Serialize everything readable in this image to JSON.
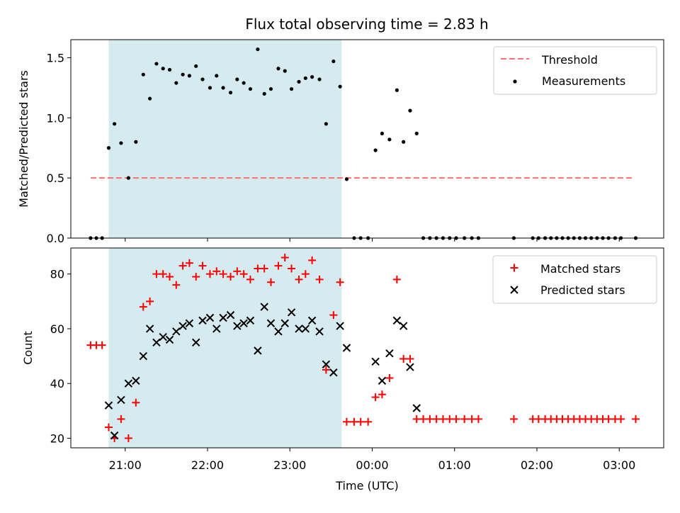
{
  "chart_data": {
    "type": "scatter",
    "title": "Flux total observing time = 2.83 h",
    "xlabel": "Time (UTC)",
    "x_ticks": [
      "21:00",
      "22:00",
      "23:00",
      "00:00",
      "01:00",
      "02:00",
      "03:00"
    ],
    "x_tick_hours": [
      21,
      22,
      23,
      24,
      25,
      26,
      27
    ],
    "xlim": [
      20.34,
      27.54
    ],
    "highlight_span": {
      "x_start": 20.8,
      "x_end": 23.63,
      "color": "#d5ebf0"
    },
    "panels": [
      {
        "ylabel": "Matched/Predicted stars",
        "ylim": [
          0,
          1.65
        ],
        "y_ticks": [
          0.0,
          0.5,
          1.0,
          1.5
        ],
        "y_tick_labels": [
          "0.0",
          "0.5",
          "1.0",
          "1.5"
        ],
        "legend_position": "top-right",
        "series": [
          {
            "name": "Threshold",
            "kind": "dashed-line",
            "color": "#ff7070",
            "y": 0.5,
            "x_range": [
              20.58,
              27.17
            ]
          },
          {
            "name": "Measurements",
            "kind": "dot",
            "color": "#000000",
            "points": [
              [
                20.58,
                0
              ],
              [
                20.65,
                0
              ],
              [
                20.72,
                0
              ],
              [
                20.8,
                0.75
              ],
              [
                20.87,
                0.95
              ],
              [
                20.95,
                0.79
              ],
              [
                21.04,
                0.5
              ],
              [
                21.13,
                0.8
              ],
              [
                21.22,
                1.36
              ],
              [
                21.3,
                1.16
              ],
              [
                21.38,
                1.45
              ],
              [
                21.46,
                1.41
              ],
              [
                21.54,
                1.4
              ],
              [
                21.62,
                1.29
              ],
              [
                21.7,
                1.36
              ],
              [
                21.78,
                1.35
              ],
              [
                21.86,
                1.43
              ],
              [
                21.94,
                1.32
              ],
              [
                22.03,
                1.25
              ],
              [
                22.11,
                1.35
              ],
              [
                22.19,
                1.25
              ],
              [
                22.28,
                1.21
              ],
              [
                22.36,
                1.32
              ],
              [
                22.44,
                1.29
              ],
              [
                22.52,
                1.24
              ],
              [
                22.61,
                1.57
              ],
              [
                22.69,
                1.2
              ],
              [
                22.77,
                1.24
              ],
              [
                22.86,
                1.41
              ],
              [
                22.94,
                1.39
              ],
              [
                23.02,
                1.24
              ],
              [
                23.11,
                1.3
              ],
              [
                23.19,
                1.33
              ],
              [
                23.27,
                1.34
              ],
              [
                23.36,
                1.32
              ],
              [
                23.44,
                0.95
              ],
              [
                23.53,
                1.47
              ],
              [
                23.61,
                1.26
              ],
              [
                23.69,
                0.49
              ],
              [
                23.78,
                0
              ],
              [
                23.86,
                0
              ],
              [
                23.95,
                0
              ],
              [
                24.04,
                0.73
              ],
              [
                24.12,
                0.87
              ],
              [
                24.21,
                0.82
              ],
              [
                24.3,
                1.23
              ],
              [
                24.38,
                0.8
              ],
              [
                24.46,
                1.06
              ],
              [
                24.54,
                0.87
              ],
              [
                24.62,
                0
              ],
              [
                24.7,
                0
              ],
              [
                24.78,
                0
              ],
              [
                24.86,
                0
              ],
              [
                24.94,
                0
              ],
              [
                25.02,
                0
              ],
              [
                25.12,
                0
              ],
              [
                25.21,
                0
              ],
              [
                25.29,
                0
              ],
              [
                25.72,
                0
              ],
              [
                25.95,
                0
              ],
              [
                26.02,
                0
              ],
              [
                26.1,
                0
              ],
              [
                26.17,
                0
              ],
              [
                26.24,
                0
              ],
              [
                26.31,
                0
              ],
              [
                26.38,
                0
              ],
              [
                26.45,
                0
              ],
              [
                26.52,
                0
              ],
              [
                26.59,
                0
              ],
              [
                26.66,
                0
              ],
              [
                26.73,
                0
              ],
              [
                26.8,
                0
              ],
              [
                26.87,
                0
              ],
              [
                26.95,
                0
              ],
              [
                27.02,
                0
              ],
              [
                27.2,
                0
              ]
            ]
          }
        ]
      },
      {
        "ylabel": "Count",
        "ylim": [
          16.5,
          89.5
        ],
        "y_ticks": [
          20,
          40,
          60,
          80
        ],
        "y_tick_labels": [
          "20",
          "40",
          "60",
          "80"
        ],
        "legend_position": "top-right",
        "series": [
          {
            "name": "Matched stars",
            "kind": "plus",
            "color": "#ff0000",
            "points": [
              [
                20.58,
                54
              ],
              [
                20.65,
                54
              ],
              [
                20.72,
                54
              ],
              [
                20.8,
                24
              ],
              [
                20.87,
                20
              ],
              [
                20.95,
                27
              ],
              [
                21.04,
                20
              ],
              [
                21.13,
                33
              ],
              [
                21.22,
                68
              ],
              [
                21.3,
                70
              ],
              [
                21.38,
                80
              ],
              [
                21.46,
                80
              ],
              [
                21.54,
                79
              ],
              [
                21.62,
                76
              ],
              [
                21.7,
                83
              ],
              [
                21.78,
                84
              ],
              [
                21.86,
                79
              ],
              [
                21.94,
                83
              ],
              [
                22.03,
                80
              ],
              [
                22.11,
                81
              ],
              [
                22.19,
                80
              ],
              [
                22.28,
                79
              ],
              [
                22.36,
                81
              ],
              [
                22.44,
                80
              ],
              [
                22.52,
                78
              ],
              [
                22.61,
                82
              ],
              [
                22.69,
                82
              ],
              [
                22.77,
                77
              ],
              [
                22.86,
                83
              ],
              [
                22.94,
                86
              ],
              [
                23.02,
                82
              ],
              [
                23.11,
                78
              ],
              [
                23.19,
                80
              ],
              [
                23.27,
                85
              ],
              [
                23.36,
                78
              ],
              [
                23.44,
                45
              ],
              [
                23.53,
                65
              ],
              [
                23.61,
                77
              ],
              [
                23.69,
                26
              ],
              [
                23.78,
                26
              ],
              [
                23.86,
                26
              ],
              [
                23.95,
                26
              ],
              [
                24.04,
                35
              ],
              [
                24.12,
                36
              ],
              [
                24.21,
                42
              ],
              [
                24.3,
                78
              ],
              [
                24.38,
                49
              ],
              [
                24.46,
                49
              ],
              [
                24.54,
                27
              ],
              [
                24.62,
                27
              ],
              [
                24.7,
                27
              ],
              [
                24.78,
                27
              ],
              [
                24.86,
                27
              ],
              [
                24.94,
                27
              ],
              [
                25.02,
                27
              ],
              [
                25.12,
                27
              ],
              [
                25.21,
                27
              ],
              [
                25.29,
                27
              ],
              [
                25.72,
                27
              ],
              [
                25.95,
                27
              ],
              [
                26.02,
                27
              ],
              [
                26.1,
                27
              ],
              [
                26.17,
                27
              ],
              [
                26.24,
                27
              ],
              [
                26.31,
                27
              ],
              [
                26.38,
                27
              ],
              [
                26.45,
                27
              ],
              [
                26.52,
                27
              ],
              [
                26.59,
                27
              ],
              [
                26.66,
                27
              ],
              [
                26.73,
                27
              ],
              [
                26.8,
                27
              ],
              [
                26.87,
                27
              ],
              [
                26.95,
                27
              ],
              [
                27.02,
                27
              ],
              [
                27.2,
                27
              ]
            ]
          },
          {
            "name": "Predicted stars",
            "kind": "x",
            "color": "#000000",
            "points": [
              [
                20.8,
                32
              ],
              [
                20.87,
                21
              ],
              [
                20.95,
                34
              ],
              [
                21.04,
                40
              ],
              [
                21.13,
                41
              ],
              [
                21.22,
                50
              ],
              [
                21.3,
                60
              ],
              [
                21.38,
                55
              ],
              [
                21.46,
                57
              ],
              [
                21.54,
                56
              ],
              [
                21.62,
                59
              ],
              [
                21.7,
                61
              ],
              [
                21.78,
                62
              ],
              [
                21.86,
                55
              ],
              [
                21.94,
                63
              ],
              [
                22.03,
                64
              ],
              [
                22.11,
                60
              ],
              [
                22.19,
                64
              ],
              [
                22.28,
                65
              ],
              [
                22.36,
                61
              ],
              [
                22.44,
                62
              ],
              [
                22.52,
                63
              ],
              [
                22.61,
                52
              ],
              [
                22.69,
                68
              ],
              [
                22.77,
                62
              ],
              [
                22.86,
                59
              ],
              [
                22.94,
                62
              ],
              [
                23.02,
                66
              ],
              [
                23.11,
                60
              ],
              [
                23.19,
                60
              ],
              [
                23.27,
                63
              ],
              [
                23.36,
                59
              ],
              [
                23.44,
                47
              ],
              [
                23.53,
                44
              ],
              [
                23.61,
                61
              ],
              [
                23.69,
                53
              ],
              [
                24.04,
                48
              ],
              [
                24.12,
                41
              ],
              [
                24.21,
                51
              ],
              [
                24.3,
                63
              ],
              [
                24.38,
                61
              ],
              [
                24.46,
                46
              ],
              [
                24.54,
                31
              ]
            ]
          }
        ]
      }
    ]
  }
}
